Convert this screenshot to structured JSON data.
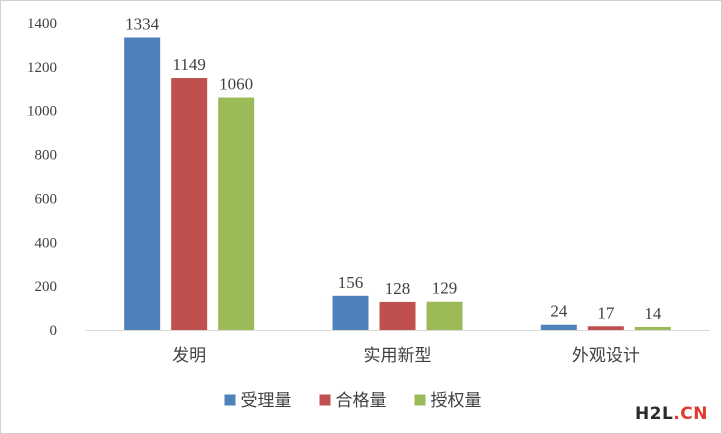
{
  "chart_data": {
    "type": "bar",
    "title": "",
    "xlabel": "",
    "ylabel": "",
    "categories": [
      "发明",
      "实用新型",
      "外观设计"
    ],
    "series": [
      {
        "name": "受理量",
        "values": [
          1334,
          156,
          24
        ],
        "color": "#4f81bd"
      },
      {
        "name": "合格量",
        "values": [
          1149,
          128,
          17
        ],
        "color": "#c0504d"
      },
      {
        "name": "授权量",
        "values": [
          1060,
          129,
          14
        ],
        "color": "#9bbb59"
      }
    ],
    "ylim": [
      0,
      1400
    ],
    "yticks": [
      0,
      200,
      400,
      600,
      800,
      1000,
      1200,
      1400
    ],
    "grid": false,
    "legend_position": "bottom",
    "data_labels": true
  },
  "watermark": {
    "part1": "H2L",
    "part2": ".CN"
  }
}
